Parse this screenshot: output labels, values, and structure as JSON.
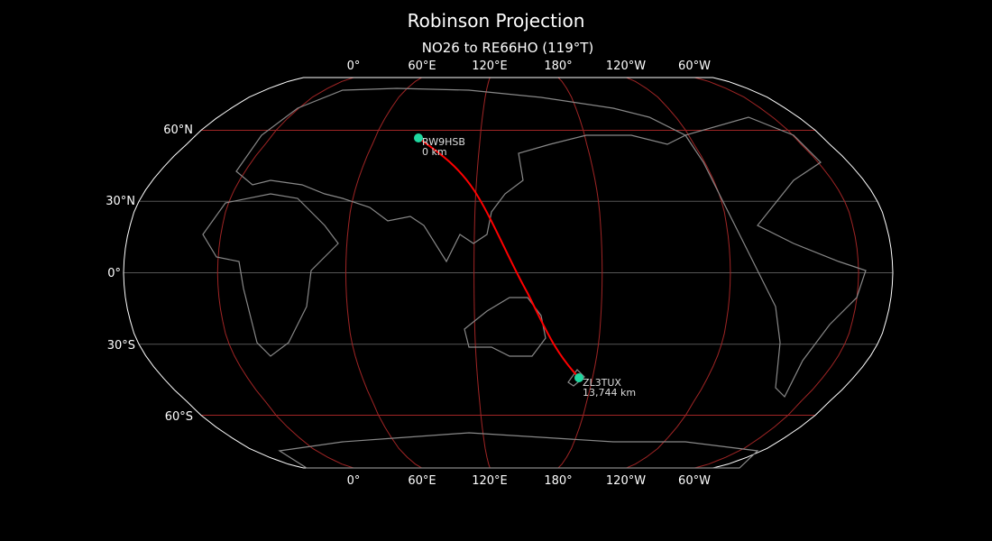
{
  "title": "Robinson Projection",
  "subtitle": "NO26 to RE66HO (119°T)",
  "longitude_labels": [
    "0°",
    "60°E",
    "120°E",
    "180°",
    "120°W",
    "60°W"
  ],
  "latitude_labels": [
    "60°N",
    "30°N",
    "0°",
    "30°S",
    "60°S"
  ],
  "colors": {
    "background": "#000000",
    "route": "#ff0000",
    "marker": "#1fd8a0",
    "graticule_major": "#a02525",
    "graticule_minor": "#555555",
    "coastline": "#888888",
    "outline": "#ffffff"
  },
  "route": {
    "start": {
      "call": "RW9HSB",
      "distance": "0 km"
    },
    "end": {
      "call": "ZL3TUX",
      "distance": "13,744 km"
    }
  }
}
